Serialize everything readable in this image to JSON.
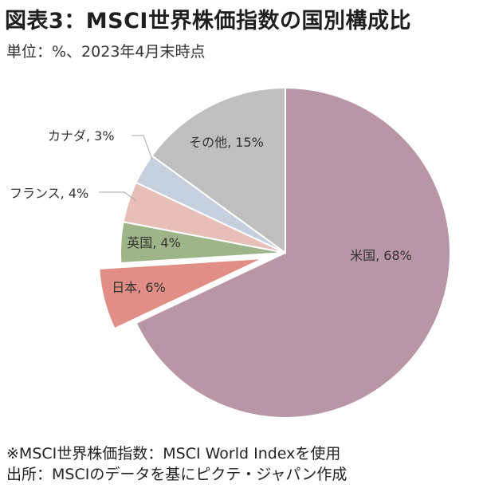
{
  "title": "図表3：MSCI世界株価指数の国別構成比",
  "subtitle": "単位：%、2023年4月末時点",
  "notes": [
    "※MSCI世界株価指数：MSCI World Indexを使用",
    "出所：MSCIのデータを基にピクテ・ジャパン作成"
  ],
  "chart_data": {
    "type": "pie",
    "categories": [
      "米国",
      "日本",
      "英国",
      "フランス",
      "カナダ",
      "その他"
    ],
    "values": [
      68,
      6,
      4,
      4,
      3,
      15
    ],
    "labels": [
      "米国, 68%",
      "日本, 6%",
      "英国, 4%",
      "フランス, 4%",
      "カナダ, 3%",
      "その他, 15%"
    ],
    "colors": [
      "#b996a7",
      "#e08e86",
      "#9eb58a",
      "#e8bfb8",
      "#c5d0df",
      "#bfbfbf"
    ],
    "exploded": [
      "日本"
    ],
    "start": "12 o'clock, clockwise",
    "unit": "%"
  }
}
